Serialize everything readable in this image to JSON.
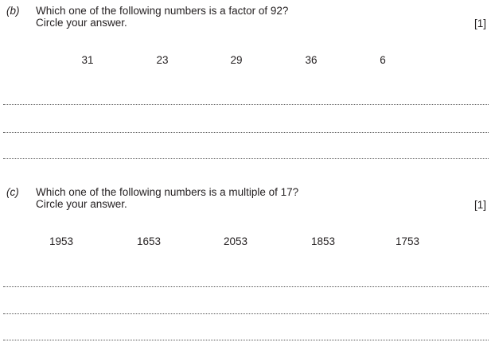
{
  "questions": [
    {
      "label": "(b)",
      "text_line1": "Which one of the following numbers is a factor of 92?",
      "text_line2": "Circle your answer.",
      "marks": "[1]",
      "options": [
        "31",
        "23",
        "29",
        "36",
        "6"
      ]
    },
    {
      "label": "(c)",
      "text_line1": "Which one of the following numbers is a multiple of 17?",
      "text_line2": "Circle your answer.",
      "marks": "[1]",
      "options": [
        "1953",
        "1653",
        "2053",
        "1853",
        "1753"
      ]
    }
  ]
}
